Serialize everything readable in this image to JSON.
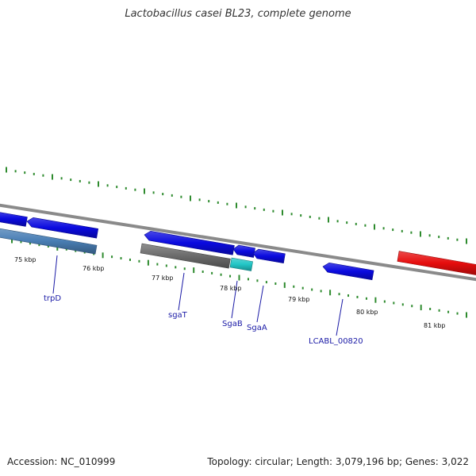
{
  "title": "Lactobacillus casei BL23, complete genome",
  "footer": {
    "accession": "Accession: NC_010999",
    "summary": "Topology: circular; Length: 3,079,196 bp; Genes: 3,022"
  },
  "colors": {
    "backbone": "#8a8a8a",
    "ticks": "#2e8b2e",
    "gene_blue": "#0a0adf",
    "gene_steelblue": "#4a7fb5",
    "gene_gray": "#6b6b6b",
    "gene_cyan": "#22c6c6",
    "gene_red": "#e60d0d",
    "label": "#1a1aa6"
  },
  "scale": {
    "tick_labels": [
      "75 kbp",
      "76 kbp",
      "77 kbp",
      "78 kbp",
      "79 kbp",
      "80 kbp",
      "81 kbp"
    ]
  },
  "genes": [
    {
      "name": "gene-left-edge",
      "color": "gene_blue",
      "strand": "+",
      "label": ""
    },
    {
      "name": "gene-before-trpd",
      "color": "gene_blue",
      "strand": "-",
      "label": ""
    },
    {
      "name": "gene-trpd",
      "color": "gene_steelblue",
      "strand": "-",
      "label": "trpD"
    },
    {
      "name": "gene-upper-mid",
      "color": "gene_blue",
      "strand": "-",
      "label": ""
    },
    {
      "name": "gene-sgat",
      "color": "gene_gray",
      "strand": "-",
      "label": "sgaT"
    },
    {
      "name": "gene-sgab",
      "color": "gene_cyan",
      "strand": "-",
      "label": "SgaB"
    },
    {
      "name": "gene-small-upper",
      "color": "gene_blue",
      "strand": "-",
      "label": ""
    },
    {
      "name": "gene-sgaa",
      "color": "gene_blue",
      "strand": "-",
      "label": "SgaA"
    },
    {
      "name": "gene-lcabl-00820",
      "color": "gene_blue",
      "strand": "-",
      "label": "LCABL_00820"
    },
    {
      "name": "gene-red",
      "color": "gene_red",
      "strand": "+",
      "label": ""
    }
  ]
}
